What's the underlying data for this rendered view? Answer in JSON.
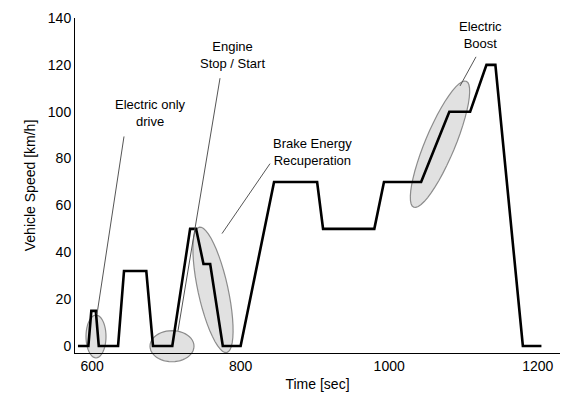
{
  "chart_data": {
    "type": "line",
    "x_label": "Time [sec]",
    "y_label": "Vehicle Speed [km/h]",
    "x": [
      581,
      595,
      599,
      605,
      609,
      635,
      643,
      673,
      682,
      708,
      732,
      740,
      750,
      759,
      776,
      800,
      845,
      903,
      911,
      980,
      993,
      1043,
      1081,
      1109,
      1131,
      1143,
      1180,
      1205
    ],
    "values": [
      0,
      0,
      15,
      15,
      0,
      0,
      32,
      32,
      0,
      0,
      50,
      50,
      35,
      35,
      0,
      0,
      70,
      70,
      50,
      50,
      70,
      70,
      100,
      100,
      120,
      120,
      0,
      0
    ],
    "color": "#000000",
    "xlim": [
      577,
      1230
    ],
    "xticks": [
      600,
      800,
      1000,
      1200
    ],
    "ylim": [
      -3,
      140
    ],
    "yticks": [
      0,
      20,
      40,
      60,
      80,
      100,
      120,
      140
    ],
    "grid": false,
    "annotations": [
      {
        "lines": [
          "Electric only",
          "drive"
        ]
      },
      {
        "lines": [
          "Engine",
          "Stop / Start"
        ]
      },
      {
        "lines": [
          "Brake Energy",
          "Recuperation"
        ]
      },
      {
        "lines": [
          "Electric",
          "Boost"
        ]
      }
    ]
  }
}
